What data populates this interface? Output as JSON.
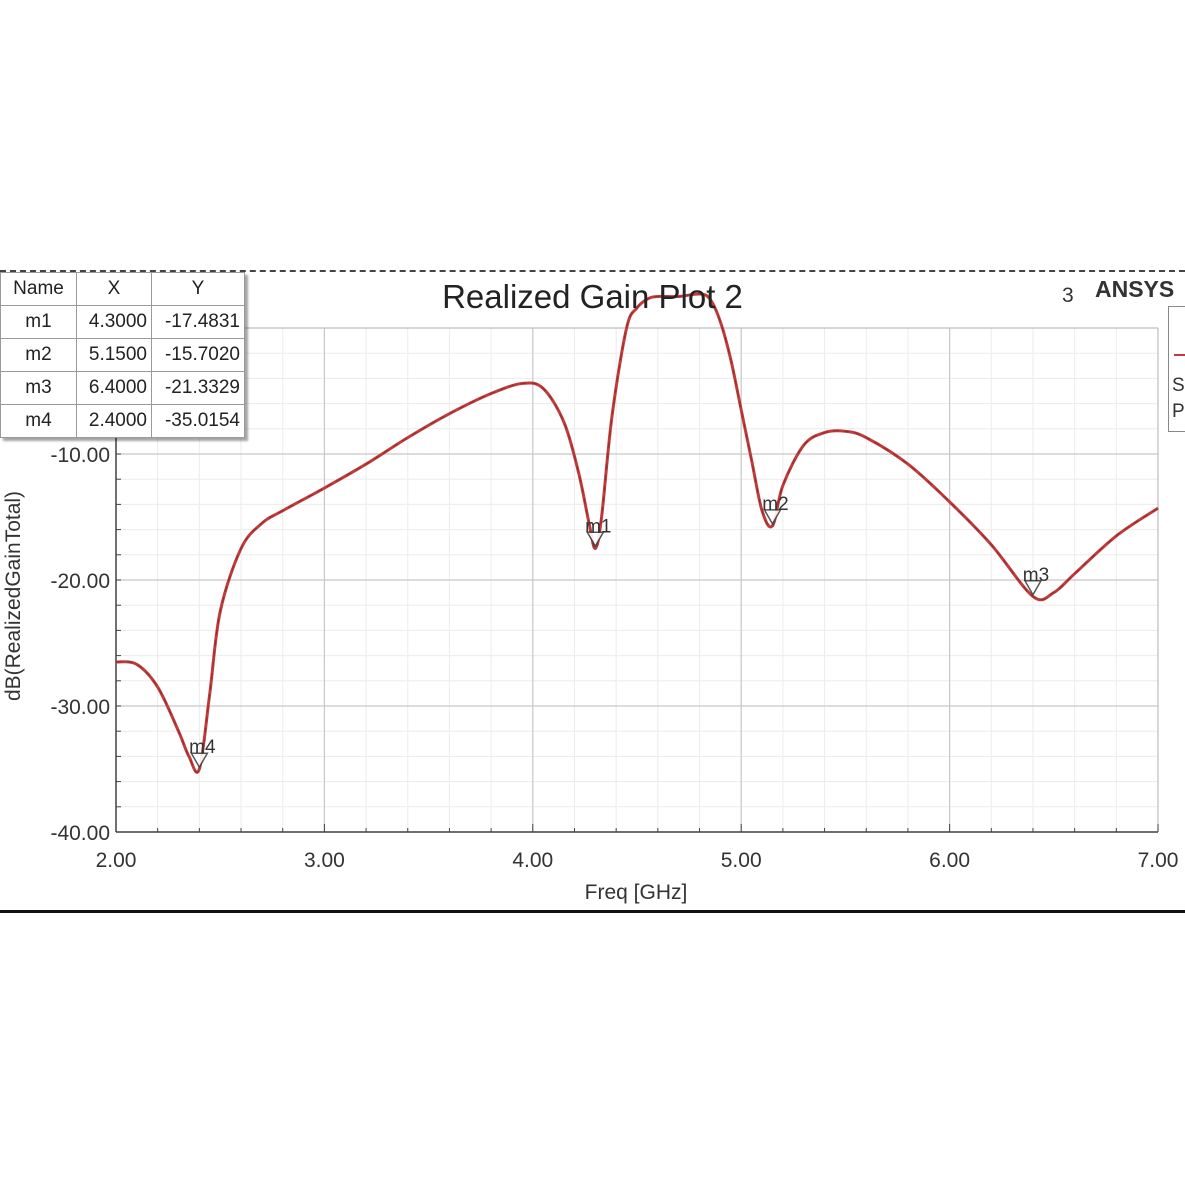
{
  "chart_data": {
    "type": "line",
    "title": "Realized Gain Plot 2",
    "plot_number": "3",
    "brand": "ANSYS",
    "legend_fragments": [
      "S",
      "P"
    ],
    "xlabel": "Freq [GHz]",
    "ylabel": "dB(RealizedGainTotal)",
    "xlim": [
      2.0,
      7.0
    ],
    "ylim": [
      -40.0,
      0.0
    ],
    "x_ticks": [
      "2.00",
      "3.00",
      "4.00",
      "5.00",
      "6.00",
      "7.00"
    ],
    "y_ticks": [
      "-10.00",
      "-20.00",
      "-30.00",
      "-40.00"
    ],
    "grid": true,
    "line_color": "#c23b3b",
    "series": [
      {
        "x": [
          2.0,
          2.1,
          2.2,
          2.3,
          2.35,
          2.4,
          2.45,
          2.5,
          2.6,
          2.7,
          2.8,
          3.0,
          3.2,
          3.4,
          3.6,
          3.8,
          3.95,
          4.05,
          4.15,
          4.22,
          4.27,
          4.3,
          4.33,
          4.38,
          4.45,
          4.5,
          4.55,
          4.6,
          4.7,
          4.8,
          4.85,
          4.9,
          4.95,
          5.0,
          5.05,
          5.1,
          5.15,
          5.2,
          5.3,
          5.4,
          5.5,
          5.6,
          5.8,
          6.0,
          6.2,
          6.4,
          6.5,
          6.6,
          6.8,
          7.0
        ],
        "y": [
          -26.5,
          -26.7,
          -28.5,
          -32.0,
          -34.0,
          -35.0,
          -29.0,
          -22.5,
          -17.5,
          -15.5,
          -14.5,
          -12.7,
          -10.8,
          -8.7,
          -6.8,
          -5.2,
          -4.4,
          -4.8,
          -7.5,
          -11.5,
          -15.5,
          -17.5,
          -15.0,
          -7.0,
          0.0,
          1.6,
          2.3,
          2.5,
          2.5,
          2.7,
          2.3,
          0.5,
          -2.5,
          -6.5,
          -10.5,
          -14.5,
          -15.7,
          -12.5,
          -9.3,
          -8.3,
          -8.2,
          -8.7,
          -10.8,
          -13.8,
          -17.2,
          -21.3,
          -21.0,
          -19.5,
          -16.5,
          -14.3
        ]
      }
    ],
    "markers": [
      {
        "name": "m1",
        "x": "4.3000",
        "y": "-17.4831"
      },
      {
        "name": "m2",
        "x": "5.1500",
        "y": "-15.7020"
      },
      {
        "name": "m3",
        "x": "6.4000",
        "y": "-21.3329"
      },
      {
        "name": "m4",
        "x": "2.4000",
        "y": "-35.0154"
      }
    ]
  },
  "table": {
    "headers": [
      "Name",
      "X",
      "Y"
    ]
  }
}
